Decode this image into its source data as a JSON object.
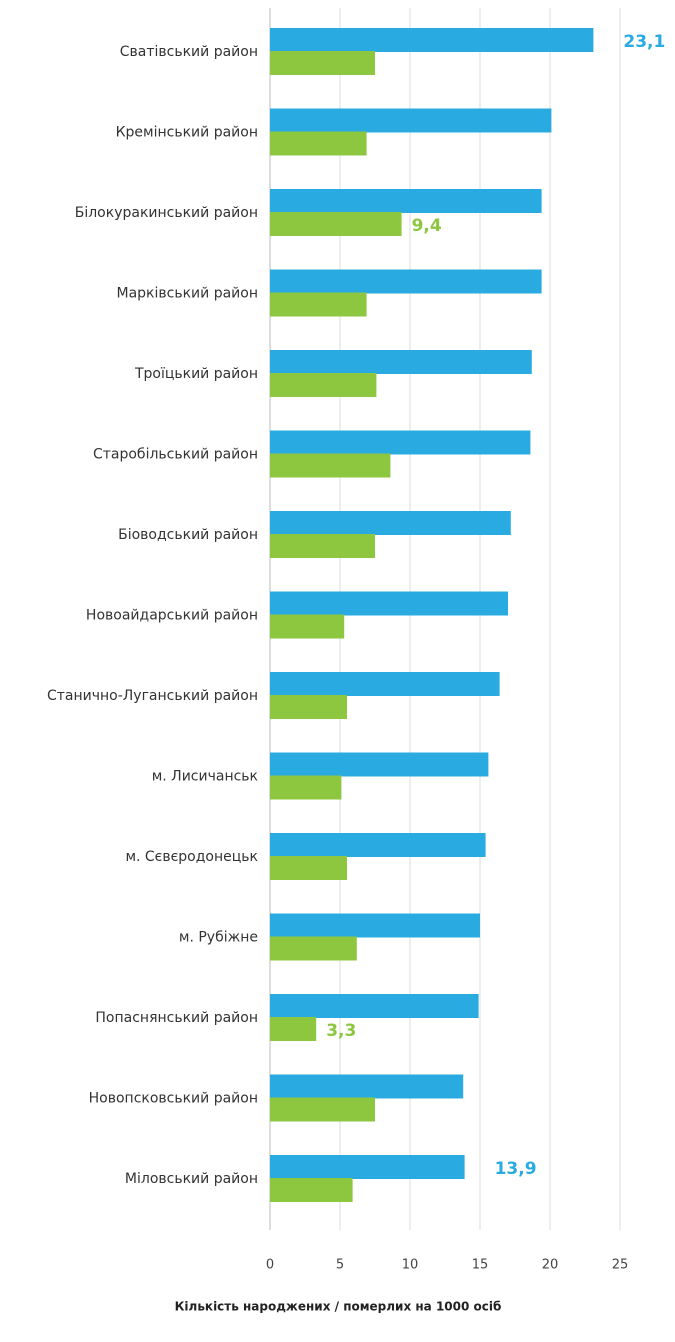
{
  "chart_data": {
    "type": "hbar",
    "xlabel": "Кількість народжених / померлих  на 1000 осіб",
    "categories": [
      "Сватівський район",
      "Кремінський район",
      "Білокуракинський район",
      "Марківський район",
      "Троїцький район",
      "Старобільський район",
      "Біоводський район",
      "Новоайдарський район",
      "Станично-Луганський район",
      "м. Лисичанськ",
      "м. Сєвєродонецьк",
      "м. Рубіжне",
      "Попаснянський район",
      "Новопсковський район",
      "Міловський район"
    ],
    "series": [
      {
        "color": "#29abe2",
        "values": [
          23.1,
          20.1,
          19.4,
          19.4,
          18.7,
          18.6,
          17.2,
          17.0,
          16.4,
          15.6,
          15.4,
          15.0,
          14.9,
          13.8,
          13.9
        ],
        "value_labels": [
          "23,1",
          null,
          null,
          null,
          null,
          null,
          null,
          null,
          null,
          null,
          null,
          null,
          null,
          null,
          "13,9"
        ]
      },
      {
        "color": "#8dc63f",
        "values": [
          7.5,
          6.9,
          9.4,
          6.9,
          7.6,
          8.6,
          7.5,
          5.3,
          5.5,
          5.1,
          5.5,
          6.2,
          3.3,
          7.5,
          5.9
        ],
        "value_labels": [
          null,
          null,
          "9,4",
          null,
          null,
          null,
          null,
          null,
          null,
          null,
          null,
          null,
          "3,3",
          null,
          null
        ]
      }
    ],
    "xlim": [
      0,
      25
    ],
    "xticks": [
      0,
      5,
      10,
      15,
      20,
      25
    ],
    "grid": true
  }
}
